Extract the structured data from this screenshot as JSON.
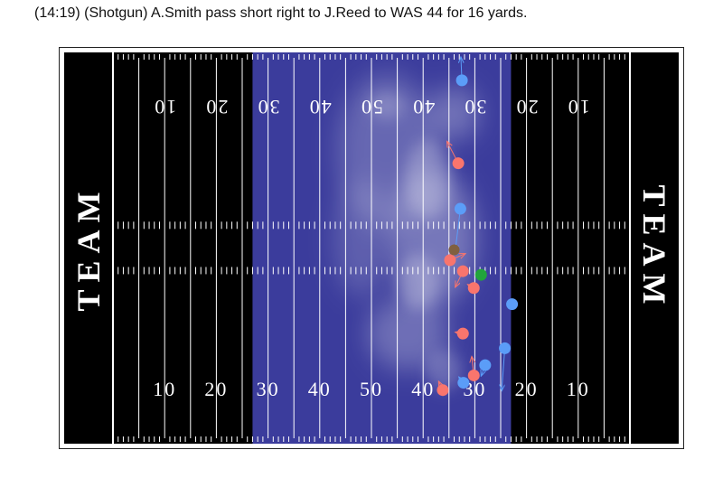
{
  "play_description": "(14:19) (Shotgun) A.Smith pass short right to J.Reed to WAS 44 for 16 yards.",
  "chart_data": {
    "type": "scatter",
    "title": "(14:19) (Shotgun) A.Smith pass short right to J.Reed to WAS 44 for 16 yards.",
    "endzone_left_label": "TEAM",
    "endzone_right_label": "TEAM",
    "yard_numbers": [
      "10",
      "20",
      "30",
      "40",
      "50",
      "40",
      "30",
      "20",
      "10"
    ],
    "colors": {
      "field": "#000000",
      "lines": "#ffffff",
      "density_band": "#3b3c9c",
      "offense": "#f9756d",
      "defense": "#5b9df8",
      "ball": "#806040",
      "ball_carrier_marker": "#22a43c"
    },
    "density_x_range_yards": [
      27,
      77
    ],
    "players": {
      "offense": [
        {
          "x": 66.8,
          "y": 38.2
        },
        {
          "x": 67.7,
          "y": 23.5
        },
        {
          "x": 65.2,
          "y": 25.0
        },
        {
          "x": 69.8,
          "y": 21.2
        },
        {
          "x": 67.7,
          "y": 15.0
        },
        {
          "x": 69.8,
          "y": 9.3
        },
        {
          "x": 63.8,
          "y": 7.3
        }
      ],
      "defense": [
        {
          "x": 67.5,
          "y": 49.5
        },
        {
          "x": 67.2,
          "y": 32.0
        },
        {
          "x": 77.2,
          "y": 19.0
        },
        {
          "x": 75.8,
          "y": 13.0
        },
        {
          "x": 72.0,
          "y": 10.7
        },
        {
          "x": 67.8,
          "y": 8.3
        }
      ],
      "ball": {
        "x": 66.0,
        "y": 26.4
      },
      "target": {
        "x": 71.2,
        "y": 23.0
      }
    }
  }
}
